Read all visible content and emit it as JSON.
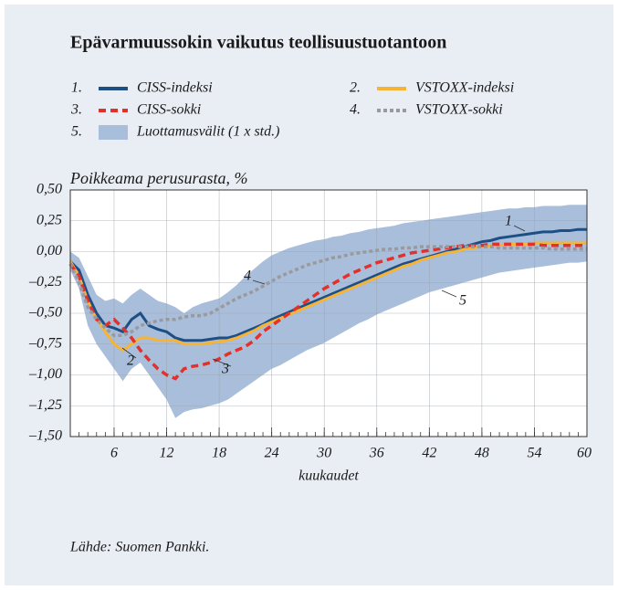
{
  "chart_data": {
    "type": "line",
    "title": "Epävarmuussokin vaikutus teollisuustuotantoon",
    "ylabel": "Poikkeama perusurasta, %",
    "xlabel": "kuukaudet",
    "source": "Lähde: Suomen Pankki.",
    "grid": true,
    "x": [
      1,
      2,
      3,
      4,
      5,
      6,
      7,
      8,
      9,
      10,
      11,
      12,
      13,
      14,
      15,
      16,
      17,
      18,
      19,
      20,
      21,
      22,
      23,
      24,
      25,
      26,
      27,
      28,
      29,
      30,
      31,
      32,
      33,
      34,
      35,
      36,
      37,
      38,
      39,
      40,
      41,
      42,
      43,
      44,
      45,
      46,
      47,
      48,
      49,
      50,
      51,
      52,
      53,
      54,
      55,
      56,
      57,
      58,
      59,
      60
    ],
    "xlim": [
      1,
      60
    ],
    "xticks": [
      6,
      12,
      18,
      24,
      30,
      36,
      42,
      48,
      54,
      60
    ],
    "ylim": [
      -1.5,
      0.5
    ],
    "yticks": [
      {
        "value": 0.5,
        "label": "0,50"
      },
      {
        "value": 0.25,
        "label": "0,25"
      },
      {
        "value": 0,
        "label": "0,00"
      },
      {
        "value": -0.25,
        "label": "–0,25"
      },
      {
        "value": -0.5,
        "label": "–0,50"
      },
      {
        "value": -0.75,
        "label": "–0,75"
      },
      {
        "value": -1,
        "label": "–1,00"
      },
      {
        "value": -1.25,
        "label": "–1,25"
      },
      {
        "value": -1.5,
        "label": "–1,50"
      }
    ],
    "series": [
      {
        "name": "CISS-indeksi",
        "number": "1.",
        "tag": "1",
        "color": "#1d4f85",
        "dash": "solid",
        "values": [
          -0.08,
          -0.15,
          -0.35,
          -0.5,
          -0.6,
          -0.62,
          -0.65,
          -0.55,
          -0.5,
          -0.6,
          -0.63,
          -0.65,
          -0.7,
          -0.72,
          -0.72,
          -0.72,
          -0.71,
          -0.7,
          -0.7,
          -0.68,
          -0.65,
          -0.62,
          -0.59,
          -0.55,
          -0.52,
          -0.49,
          -0.46,
          -0.43,
          -0.4,
          -0.37,
          -0.34,
          -0.31,
          -0.28,
          -0.25,
          -0.22,
          -0.19,
          -0.16,
          -0.13,
          -0.1,
          -0.08,
          -0.06,
          -0.04,
          -0.02,
          0.0,
          0.02,
          0.04,
          0.06,
          0.08,
          0.09,
          0.11,
          0.12,
          0.13,
          0.14,
          0.15,
          0.16,
          0.16,
          0.17,
          0.17,
          0.18,
          0.18
        ]
      },
      {
        "name": "VSTOXX-indeksi",
        "number": "2.",
        "tag": "2",
        "color": "#f7b334",
        "dash": "solid",
        "values": [
          -0.08,
          -0.2,
          -0.4,
          -0.55,
          -0.65,
          -0.75,
          -0.8,
          -0.75,
          -0.7,
          -0.7,
          -0.72,
          -0.72,
          -0.72,
          -0.75,
          -0.75,
          -0.75,
          -0.74,
          -0.73,
          -0.72,
          -0.7,
          -0.67,
          -0.64,
          -0.6,
          -0.57,
          -0.54,
          -0.51,
          -0.48,
          -0.45,
          -0.42,
          -0.39,
          -0.36,
          -0.33,
          -0.3,
          -0.27,
          -0.24,
          -0.21,
          -0.18,
          -0.15,
          -0.12,
          -0.1,
          -0.07,
          -0.05,
          -0.03,
          -0.01,
          0.0,
          0.02,
          0.03,
          0.04,
          0.05,
          0.05,
          0.06,
          0.06,
          0.06,
          0.07,
          0.07,
          0.07,
          0.07,
          0.07,
          0.07,
          0.07
        ]
      },
      {
        "name": "CISS-sokki",
        "number": "3.",
        "tag": "3",
        "color": "#e4302a",
        "dash": "dashed",
        "values": [
          -0.1,
          -0.2,
          -0.4,
          -0.55,
          -0.6,
          -0.55,
          -0.62,
          -0.7,
          -0.8,
          -0.88,
          -0.95,
          -1.0,
          -1.03,
          -0.95,
          -0.93,
          -0.92,
          -0.9,
          -0.87,
          -0.83,
          -0.8,
          -0.77,
          -0.72,
          -0.65,
          -0.6,
          -0.55,
          -0.5,
          -0.45,
          -0.4,
          -0.35,
          -0.3,
          -0.26,
          -0.22,
          -0.18,
          -0.15,
          -0.12,
          -0.09,
          -0.07,
          -0.05,
          -0.03,
          -0.01,
          0.0,
          0.01,
          0.02,
          0.03,
          0.04,
          0.05,
          0.05,
          0.05,
          0.06,
          0.06,
          0.06,
          0.06,
          0.06,
          0.06,
          0.05,
          0.05,
          0.05,
          0.05,
          0.05,
          0.05
        ]
      },
      {
        "name": "VSTOXX-sokki",
        "number": "4.",
        "tag": "4",
        "color": "#9a9a9e",
        "dash": "dotted",
        "values": [
          -0.1,
          -0.25,
          -0.45,
          -0.55,
          -0.62,
          -0.68,
          -0.68,
          -0.65,
          -0.6,
          -0.58,
          -0.56,
          -0.55,
          -0.55,
          -0.53,
          -0.52,
          -0.52,
          -0.5,
          -0.46,
          -0.42,
          -0.38,
          -0.35,
          -0.32,
          -0.28,
          -0.24,
          -0.2,
          -0.17,
          -0.14,
          -0.11,
          -0.09,
          -0.07,
          -0.05,
          -0.04,
          -0.02,
          -0.01,
          0.0,
          0.01,
          0.02,
          0.02,
          0.03,
          0.03,
          0.04,
          0.04,
          0.04,
          0.04,
          0.04,
          0.04,
          0.04,
          0.04,
          0.04,
          0.03,
          0.03,
          0.03,
          0.03,
          0.03,
          0.03,
          0.02,
          0.02,
          0.02,
          0.02,
          0.02
        ]
      }
    ],
    "band": {
      "name": "Luottamusvälit (1 x std.)",
      "number": "5.",
      "tag": "5",
      "color": "#a9bedb",
      "upper": [
        0.0,
        -0.05,
        -0.2,
        -0.35,
        -0.4,
        -0.38,
        -0.42,
        -0.35,
        -0.3,
        -0.35,
        -0.4,
        -0.42,
        -0.45,
        -0.5,
        -0.45,
        -0.42,
        -0.4,
        -0.38,
        -0.33,
        -0.27,
        -0.2,
        -0.14,
        -0.08,
        -0.03,
        0.0,
        0.03,
        0.05,
        0.07,
        0.09,
        0.1,
        0.12,
        0.13,
        0.15,
        0.16,
        0.18,
        0.19,
        0.2,
        0.21,
        0.23,
        0.24,
        0.25,
        0.26,
        0.27,
        0.28,
        0.29,
        0.3,
        0.31,
        0.32,
        0.33,
        0.34,
        0.35,
        0.35,
        0.36,
        0.36,
        0.37,
        0.37,
        0.37,
        0.38,
        0.38,
        0.38
      ],
      "lower": [
        -0.15,
        -0.3,
        -0.6,
        -0.75,
        -0.85,
        -0.95,
        -1.05,
        -0.95,
        -0.9,
        -1.0,
        -1.1,
        -1.2,
        -1.35,
        -1.3,
        -1.28,
        -1.27,
        -1.25,
        -1.23,
        -1.2,
        -1.15,
        -1.1,
        -1.05,
        -1.0,
        -0.95,
        -0.92,
        -0.88,
        -0.84,
        -0.8,
        -0.77,
        -0.74,
        -0.7,
        -0.66,
        -0.62,
        -0.58,
        -0.55,
        -0.51,
        -0.48,
        -0.45,
        -0.42,
        -0.39,
        -0.36,
        -0.33,
        -0.31,
        -0.29,
        -0.27,
        -0.25,
        -0.23,
        -0.21,
        -0.19,
        -0.17,
        -0.16,
        -0.15,
        -0.14,
        -0.13,
        -0.12,
        -0.11,
        -0.1,
        -0.09,
        -0.09,
        -0.08
      ]
    }
  }
}
